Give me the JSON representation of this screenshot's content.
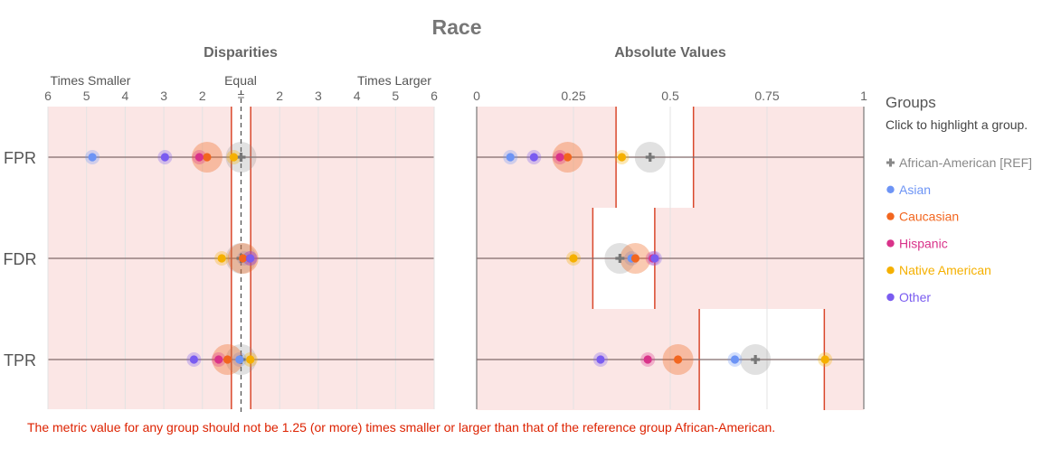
{
  "title": "Race",
  "panels": {
    "disparities": {
      "title": "Disparities",
      "left_label": "Times Smaller",
      "center_label": "Equal",
      "right_label": "Times Larger",
      "tick_labels": [
        "6",
        "5",
        "4",
        "3",
        "2",
        "=",
        "2",
        "3",
        "4",
        "5",
        "6"
      ]
    },
    "absolute": {
      "title": "Absolute Values",
      "tick_labels": [
        "0",
        "0.25",
        "0.5",
        "0.75",
        "1"
      ]
    }
  },
  "legend": {
    "title": "Groups",
    "subtitle": "Click to highlight a group.",
    "items": [
      {
        "label": "African-American [REF]",
        "color": "#888888",
        "icon": "plus-marker"
      },
      {
        "label": "Asian",
        "color": "#6d94f5",
        "icon": "dot-marker"
      },
      {
        "label": "Caucasian",
        "color": "#f2661f",
        "icon": "dot-marker"
      },
      {
        "label": "Hispanic",
        "color": "#d9338a",
        "icon": "dot-marker"
      },
      {
        "label": "Native American",
        "color": "#f5b000",
        "icon": "dot-marker"
      },
      {
        "label": "Other",
        "color": "#7a5cf0",
        "icon": "dot-marker"
      }
    ]
  },
  "footnote": "The metric value for any group should not be 1.25 (or more) times smaller or larger than that of the reference group African-American.",
  "colors": {
    "fail_band": "#fbe6e5",
    "threshold_line": "#d9472b",
    "axis_line": "#806a6a",
    "grid": "#e3e3e3"
  },
  "chart_data": [
    {
      "type": "scatter",
      "name": "Disparities",
      "x_scale": "symmetric ratio (times smaller / times larger)",
      "xlim": [
        -6,
        6
      ],
      "threshold": 1.25,
      "metrics": [
        "FPR",
        "FDR",
        "TPR"
      ],
      "series": [
        {
          "group": "African-American",
          "reference": true,
          "values": [
            1.0,
            1.0,
            1.0
          ]
        },
        {
          "group": "Asian",
          "values": [
            -4.85,
            1.08,
            -1.04
          ]
        },
        {
          "group": "Caucasian",
          "values": [
            -1.88,
            1.05,
            -1.35
          ]
        },
        {
          "group": "Hispanic",
          "values": [
            -2.08,
            1.23,
            -1.58
          ]
        },
        {
          "group": "Native American",
          "values": [
            -1.19,
            -1.5,
            1.24
          ]
        },
        {
          "group": "Other",
          "values": [
            -2.97,
            1.24,
            -2.22
          ]
        }
      ]
    },
    {
      "type": "scatter",
      "name": "Absolute Values",
      "xlim": [
        0,
        1
      ],
      "metrics": [
        "FPR",
        "FDR",
        "TPR"
      ],
      "pass_range": {
        "FPR": [
          0.36,
          0.56
        ],
        "FDR": [
          0.3,
          0.46
        ],
        "TPR": [
          0.575,
          0.898
        ]
      },
      "series": [
        {
          "group": "African-American",
          "reference": true,
          "values": [
            0.448,
            0.37,
            0.72
          ]
        },
        {
          "group": "Asian",
          "values": [
            0.087,
            0.4,
            0.667
          ]
        },
        {
          "group": "Caucasian",
          "values": [
            0.235,
            0.41,
            0.52
          ]
        },
        {
          "group": "Hispanic",
          "values": [
            0.215,
            0.455,
            0.442
          ]
        },
        {
          "group": "Native American",
          "values": [
            0.375,
            0.25,
            0.9
          ]
        },
        {
          "group": "Other",
          "values": [
            0.148,
            0.46,
            0.32
          ]
        }
      ]
    }
  ]
}
